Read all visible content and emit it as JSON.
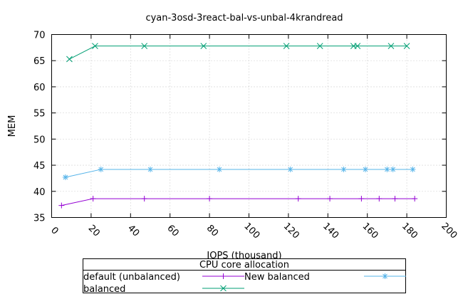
{
  "chart_data": {
    "type": "line",
    "title": "cyan-3osd-3react-bal-vs-unbal-4krandread",
    "xlabel": "IOPS (thousand)",
    "ylabel": "MEM",
    "xlim": [
      0,
      200
    ],
    "ylim": [
      35,
      70
    ],
    "xticks": [
      0,
      20,
      40,
      60,
      80,
      100,
      120,
      140,
      160,
      180,
      200
    ],
    "yticks": [
      35,
      40,
      45,
      50,
      55,
      60,
      65,
      70
    ],
    "grid": true,
    "legend": {
      "title": "CPU core allocation",
      "placement": "bottom"
    },
    "series": [
      {
        "name": "default (unbalanced)",
        "color": "#9400d3",
        "marker": "plus",
        "x": [
          5,
          21,
          47,
          80,
          125,
          141,
          157,
          166,
          174,
          184
        ],
        "y": [
          37.3,
          38.6,
          38.6,
          38.6,
          38.6,
          38.6,
          38.6,
          38.6,
          38.6,
          38.6
        ]
      },
      {
        "name": "New balanced",
        "color": "#56b4e9",
        "marker": "star",
        "x": [
          7,
          25,
          50,
          85,
          121,
          148,
          159,
          170,
          173,
          183
        ],
        "y": [
          42.7,
          44.2,
          44.2,
          44.2,
          44.2,
          44.2,
          44.2,
          44.2,
          44.2,
          44.2
        ]
      },
      {
        "name": "balanced",
        "color": "#009e73",
        "marker": "cross",
        "x": [
          9,
          22,
          47,
          77,
          119,
          136,
          153,
          155,
          172,
          180
        ],
        "y": [
          65.3,
          67.8,
          67.8,
          67.8,
          67.8,
          67.8,
          67.8,
          67.8,
          67.8,
          67.8
        ]
      }
    ]
  }
}
